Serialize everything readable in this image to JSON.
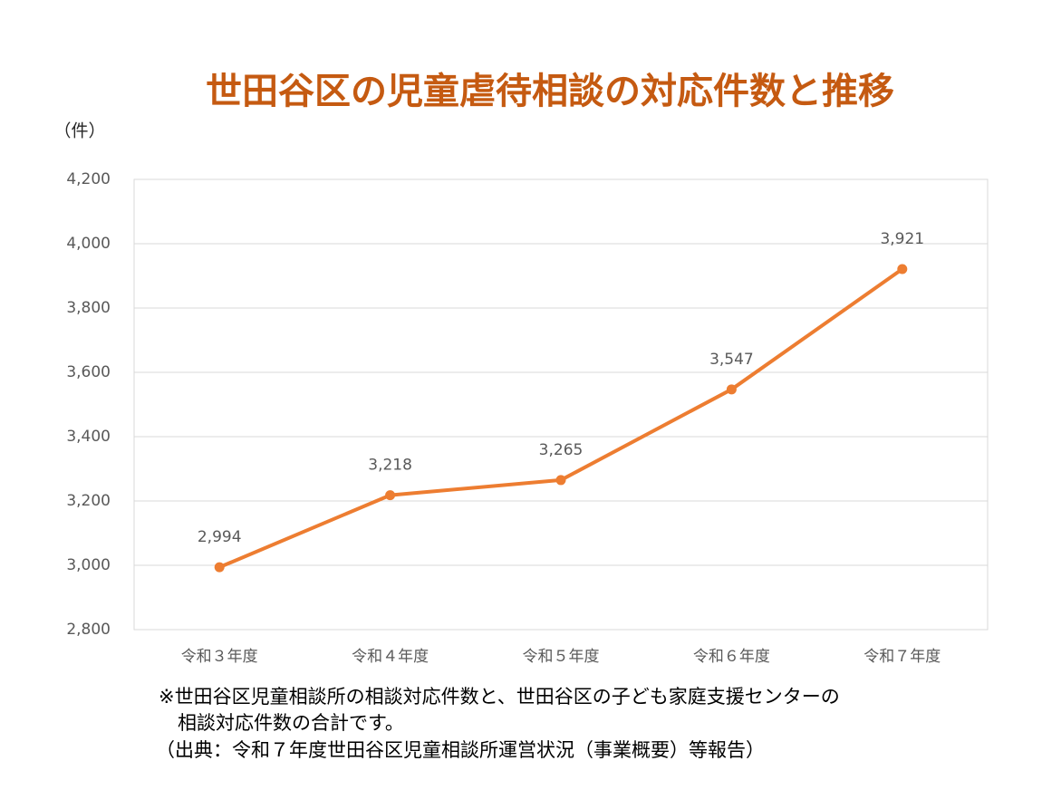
{
  "chart_data": {
    "type": "line",
    "title": "世田谷区の児童虐待相談の対応件数と推移",
    "y_axis_label": "（件）",
    "categories": [
      "令和３年度",
      "令和４年度",
      "令和５年度",
      "令和６年度",
      "令和７年度"
    ],
    "values": [
      2994,
      3218,
      3265,
      3547,
      3921
    ],
    "value_labels": [
      "2,994",
      "3,218",
      "3,265",
      "3,547",
      "3,921"
    ],
    "color": "#ed7d31",
    "ylim": [
      2800,
      4200
    ],
    "yticks": [
      {
        "value": 2800,
        "label": "2,800"
      },
      {
        "value": 3000,
        "label": "3,000"
      },
      {
        "value": 3200,
        "label": "3,200"
      },
      {
        "value": 3400,
        "label": "3,400"
      },
      {
        "value": 3600,
        "label": "3,600"
      },
      {
        "value": 3800,
        "label": "3,800"
      },
      {
        "value": 4000,
        "label": "4,000"
      },
      {
        "value": 4200,
        "label": "4,200"
      }
    ],
    "grid": true
  },
  "notes": [
    "※世田谷区児童相談所の相談対応件数と、世田谷区の子ども家庭支援センターの",
    "相談対応件数の合計です。",
    "（出典：令和７年度世田谷区児童相談所運営状況（事業概要）等報告）"
  ]
}
